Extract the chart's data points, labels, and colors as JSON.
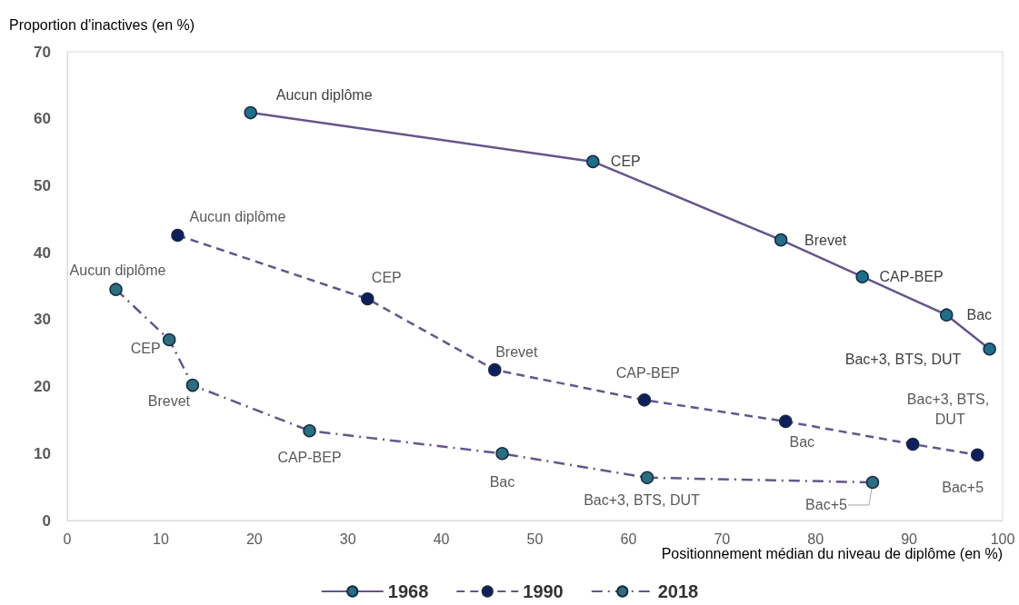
{
  "chart_data": {
    "type": "line",
    "xlabel": "Positionnement médian du niveau de diplôme (en %)",
    "ylabel": "Proportion d'inactives (en %)",
    "xlim": [
      0,
      100
    ],
    "xticks": [
      0,
      10,
      20,
      30,
      40,
      50,
      60,
      70,
      80,
      90,
      100
    ],
    "ylim": [
      0,
      70
    ],
    "yticks": [
      0,
      10,
      20,
      30,
      40,
      50,
      60,
      70
    ],
    "grid": false,
    "legend": "bottom",
    "marker": "circle",
    "series": [
      {
        "name": "1968",
        "color": "#65558c",
        "line_style": "solid",
        "colors": [
          "#1d6f8a",
          "#1d6f8a",
          "#1d6f8a",
          "#1d6f8a",
          "#1d6f8a",
          "#1d6f8a"
        ],
        "x": [
          19.6,
          56.2,
          76.3,
          85.0,
          94.0,
          98.6
        ],
        "values": [
          60.9,
          53.6,
          41.9,
          36.4,
          30.7,
          25.6
        ]
      },
      {
        "name": "1990",
        "color": "#65558c",
        "line_style": "dashed",
        "colors": [
          "#0d1f5c",
          "#0d1f5c",
          "#0d1f5c",
          "#0d1f5c",
          "#0d1f5c",
          "#0d1f5c",
          "#0d1f5c"
        ],
        "x": [
          11.8,
          32.1,
          45.7,
          61.7,
          76.8,
          90.4,
          97.3
        ],
        "values": [
          42.6,
          33.1,
          22.5,
          18.0,
          14.8,
          11.4,
          9.8
        ]
      },
      {
        "name": "2018",
        "color": "#65558c",
        "line_style": "dashdot",
        "colors": [
          "#2a6f80",
          "#2a6f80",
          "#2a6f80",
          "#2a6f80",
          "#2a6f80",
          "#2a6f80",
          "#2a6f80"
        ],
        "x": [
          5.2,
          10.9,
          13.4,
          25.9,
          46.5,
          62.0,
          86.1
        ],
        "values": [
          34.5,
          27.0,
          20.2,
          13.4,
          10.0,
          6.4,
          5.7
        ]
      }
    ],
    "annotations": [
      {
        "text": "Aucun diplôme",
        "x": 19.6,
        "y": 60.9
      },
      {
        "text": "CEP",
        "x": 56.2,
        "y": 53.6
      },
      {
        "text": "Brevet",
        "x": 76.3,
        "y": 41.9
      },
      {
        "text": "CAP-BEP",
        "x": 85.0,
        "y": 36.4
      },
      {
        "text": "Bac",
        "x": 94.0,
        "y": 30.7
      },
      {
        "text": "Bac+3, BTS, DUT",
        "x": 98.6,
        "y": 25.6
      },
      {
        "text": "Aucun diplôme",
        "x": 11.8,
        "y": 42.6
      },
      {
        "text": "CEP",
        "x": 32.1,
        "y": 33.1
      },
      {
        "text": "Brevet",
        "x": 45.7,
        "y": 22.5
      },
      {
        "text": "CAP-BEP",
        "x": 61.7,
        "y": 18.0
      },
      {
        "text": "Bac",
        "x": 76.8,
        "y": 14.8
      },
      {
        "text": "Bac+3, BTS, DUT",
        "x": 90.4,
        "y": 11.4
      },
      {
        "text": "Bac+5",
        "x": 97.3,
        "y": 9.8
      },
      {
        "text": "Aucun diplôme",
        "x": 5.2,
        "y": 34.5
      },
      {
        "text": "CEP",
        "x": 10.9,
        "y": 27.0
      },
      {
        "text": "Brevet",
        "x": 13.4,
        "y": 20.2
      },
      {
        "text": "CAP-BEP",
        "x": 25.9,
        "y": 13.4
      },
      {
        "text": "Bac",
        "x": 46.5,
        "y": 10.0
      },
      {
        "text": "Bac+3, BTS, DUT",
        "x": 62.0,
        "y": 6.4
      },
      {
        "text": "Bac+5",
        "x": 86.1,
        "y": 5.7
      }
    ]
  }
}
